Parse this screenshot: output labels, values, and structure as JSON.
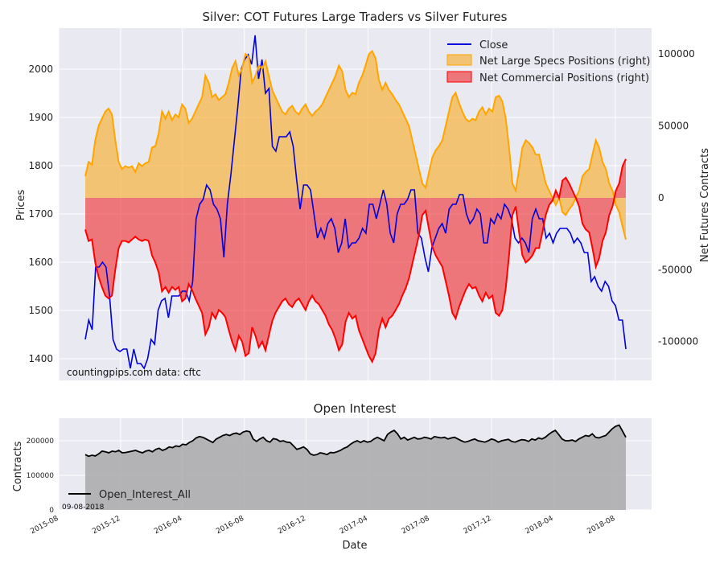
{
  "chart_data": [
    {
      "type": "line+area",
      "title": "Silver: COT Futures Large Traders vs Silver Futures",
      "ylabel_left": "Prices",
      "ylabel_right": "Net Futures Contracts",
      "yticks_left": [
        "1400",
        "1500",
        "1600",
        "1700",
        "1800",
        "1900",
        "2000"
      ],
      "yticks_right": [
        "-100000",
        "-50000",
        "0",
        "50000",
        "100000"
      ],
      "ylim_left": [
        1355,
        2085
      ],
      "ylim_right": [
        -127000,
        118000
      ],
      "x_range_weeks": [
        0,
        162
      ],
      "legend": {
        "close": "Close",
        "specs": "Net Large Specs Positions (right)",
        "comm": "Net Commercial Positions (right)"
      },
      "watermark": "countingpips.com",
      "source": "data: cftc",
      "series": [
        {
          "name": "Close",
          "axis": "left",
          "values": [
            1440,
            1480,
            1460,
            1590,
            1590,
            1600,
            1590,
            1530,
            1440,
            1420,
            1415,
            1420,
            1420,
            1380,
            1420,
            1390,
            1390,
            1380,
            1400,
            1440,
            1430,
            1500,
            1520,
            1525,
            1485,
            1530,
            1530,
            1530,
            1540,
            1540,
            1520,
            1560,
            1690,
            1720,
            1730,
            1760,
            1750,
            1720,
            1710,
            1690,
            1610,
            1720,
            1780,
            1850,
            1920,
            2000,
            2020,
            2030,
            2010,
            2070,
            1980,
            2020,
            1950,
            1960,
            1840,
            1830,
            1860,
            1860,
            1860,
            1870,
            1840,
            1770,
            1710,
            1760,
            1760,
            1750,
            1700,
            1650,
            1670,
            1650,
            1680,
            1690,
            1670,
            1620,
            1640,
            1690,
            1630,
            1640,
            1640,
            1650,
            1670,
            1660,
            1720,
            1720,
            1690,
            1720,
            1750,
            1720,
            1660,
            1640,
            1700,
            1720,
            1720,
            1730,
            1750,
            1750,
            1660,
            1650,
            1610,
            1580,
            1630,
            1650,
            1670,
            1680,
            1660,
            1710,
            1720,
            1720,
            1740,
            1740,
            1700,
            1680,
            1690,
            1710,
            1700,
            1640,
            1640,
            1690,
            1680,
            1700,
            1690,
            1720,
            1710,
            1690,
            1650,
            1640,
            1650,
            1640,
            1620,
            1690,
            1710,
            1690,
            1690,
            1650,
            1660,
            1640,
            1660,
            1670,
            1670,
            1670,
            1660,
            1640,
            1650,
            1640,
            1620,
            1620,
            1560,
            1570,
            1550,
            1540,
            1560,
            1550,
            1520,
            1510,
            1480,
            1480,
            1420
          ]
        },
        {
          "name": "Net Large Specs Positions (right)",
          "axis": "right",
          "values": [
            15000,
            25000,
            23000,
            40000,
            50000,
            55000,
            60000,
            62000,
            58000,
            40000,
            25000,
            20000,
            22000,
            21000,
            22000,
            18000,
            24000,
            22000,
            24000,
            25000,
            35000,
            36000,
            45000,
            60000,
            55000,
            60000,
            54000,
            58000,
            56000,
            65000,
            62000,
            52000,
            55000,
            60000,
            65000,
            70000,
            85000,
            80000,
            70000,
            72000,
            68000,
            70000,
            72000,
            80000,
            90000,
            95000,
            85000,
            90000,
            100000,
            98000,
            80000,
            85000,
            92000,
            90000,
            95000,
            85000,
            75000,
            70000,
            65000,
            60000,
            58000,
            62000,
            64000,
            60000,
            58000,
            62000,
            65000,
            60000,
            57000,
            60000,
            62000,
            65000,
            70000,
            75000,
            80000,
            85000,
            92000,
            88000,
            75000,
            70000,
            73000,
            72000,
            80000,
            85000,
            92000,
            100000,
            102000,
            97000,
            82000,
            75000,
            80000,
            75000,
            72000,
            68000,
            65000,
            60000,
            55000,
            50000,
            40000,
            30000,
            20000,
            10000,
            7000,
            18000,
            28000,
            33000,
            36000,
            40000,
            50000,
            60000,
            70000,
            73000,
            66000,
            60000,
            55000,
            53000,
            55000,
            54000,
            60000,
            63000,
            58000,
            62000,
            60000,
            70000,
            71000,
            67000,
            55000,
            35000,
            10000,
            5000,
            20000,
            35000,
            40000,
            38000,
            35000,
            30000,
            30000,
            20000,
            10000,
            5000,
            0,
            -5000,
            0,
            -10000,
            -12000,
            -8000,
            -5000,
            0,
            5000,
            15000,
            18000,
            20000,
            30000,
            40000,
            35000,
            25000,
            20000,
            10000,
            5000,
            -5000,
            -10000,
            -20000,
            -29000
          ]
        },
        {
          "name": "Net Commercial Positions (right)",
          "axis": "right",
          "values": [
            -22000,
            -30000,
            -29000,
            -45000,
            -55000,
            -62000,
            -68000,
            -70000,
            -68000,
            -50000,
            -35000,
            -30000,
            -30000,
            -31000,
            -29000,
            -27000,
            -29000,
            -30000,
            -29000,
            -30000,
            -40000,
            -45000,
            -52000,
            -65000,
            -62000,
            -66000,
            -62000,
            -64000,
            -62000,
            -72000,
            -70000,
            -60000,
            -64000,
            -70000,
            -75000,
            -80000,
            -95000,
            -90000,
            -80000,
            -84000,
            -78000,
            -80000,
            -83000,
            -92000,
            -100000,
            -106000,
            -96000,
            -100000,
            -110000,
            -108000,
            -90000,
            -96000,
            -104000,
            -100000,
            -106000,
            -96000,
            -86000,
            -80000,
            -76000,
            -72000,
            -70000,
            -74000,
            -76000,
            -72000,
            -70000,
            -74000,
            -78000,
            -72000,
            -68000,
            -72000,
            -74000,
            -78000,
            -82000,
            -88000,
            -92000,
            -98000,
            -106000,
            -102000,
            -86000,
            -80000,
            -84000,
            -82000,
            -92000,
            -98000,
            -104000,
            -110000,
            -114000,
            -108000,
            -92000,
            -84000,
            -90000,
            -84000,
            -82000,
            -78000,
            -74000,
            -68000,
            -63000,
            -56000,
            -46000,
            -36000,
            -26000,
            -12000,
            -9000,
            -22000,
            -34000,
            -40000,
            -44000,
            -48000,
            -58000,
            -68000,
            -80000,
            -84000,
            -76000,
            -70000,
            -64000,
            -60000,
            -63000,
            -62000,
            -68000,
            -72000,
            -66000,
            -70000,
            -68000,
            -80000,
            -82000,
            -78000,
            -63000,
            -40000,
            -12000,
            -6000,
            -24000,
            -40000,
            -45000,
            -43000,
            -40000,
            -35000,
            -35000,
            -24000,
            -12000,
            -5000,
            -2000,
            5000,
            0,
            12000,
            14000,
            10000,
            5000,
            0,
            -6000,
            -18000,
            -22000,
            -24000,
            -35000,
            -48000,
            -42000,
            -30000,
            -24000,
            -12000,
            -6000,
            5000,
            10000,
            22000,
            27000
          ]
        }
      ]
    },
    {
      "type": "area",
      "title": "Open Interest",
      "xlabel": "Date",
      "ylabel": "Contracts",
      "yticks": [
        "0",
        "100000",
        "200000"
      ],
      "ylim": [
        0,
        265000
      ],
      "legend_label": "Open_Interest_All",
      "date_note": "09-08-2018",
      "xticks": [
        "2015-08",
        "2015-12",
        "2016-04",
        "2016-08",
        "2016-12",
        "2017-04",
        "2017-08",
        "2017-12",
        "2018-04",
        "2018-08"
      ],
      "values": [
        160000,
        155000,
        158000,
        156000,
        162000,
        170000,
        168000,
        165000,
        170000,
        168000,
        172000,
        165000,
        166000,
        168000,
        170000,
        172000,
        168000,
        165000,
        170000,
        172000,
        168000,
        175000,
        178000,
        172000,
        176000,
        182000,
        180000,
        185000,
        183000,
        190000,
        188000,
        195000,
        200000,
        208000,
        212000,
        210000,
        205000,
        200000,
        195000,
        205000,
        210000,
        215000,
        218000,
        215000,
        220000,
        222000,
        218000,
        225000,
        228000,
        226000,
        205000,
        198000,
        205000,
        210000,
        200000,
        196000,
        206000,
        204000,
        198000,
        200000,
        196000,
        195000,
        185000,
        175000,
        178000,
        182000,
        175000,
        162000,
        158000,
        160000,
        165000,
        163000,
        160000,
        166000,
        165000,
        168000,
        172000,
        178000,
        182000,
        190000,
        196000,
        200000,
        195000,
        200000,
        196000,
        198000,
        205000,
        210000,
        205000,
        200000,
        218000,
        225000,
        230000,
        220000,
        205000,
        210000,
        202000,
        206000,
        210000,
        205000,
        206000,
        210000,
        208000,
        205000,
        212000,
        210000,
        208000,
        210000,
        205000,
        208000,
        210000,
        205000,
        200000,
        196000,
        198000,
        202000,
        205000,
        200000,
        198000,
        196000,
        200000,
        205000,
        202000,
        196000,
        200000,
        202000,
        204000,
        198000,
        196000,
        200000,
        203000,
        202000,
        198000,
        205000,
        202000,
        208000,
        205000,
        210000,
        218000,
        225000,
        230000,
        218000,
        205000,
        200000,
        200000,
        202000,
        198000,
        205000,
        210000,
        215000,
        213000,
        220000,
        210000,
        208000,
        212000,
        215000,
        225000,
        235000,
        242000,
        245000,
        228000,
        210000
      ]
    }
  ]
}
